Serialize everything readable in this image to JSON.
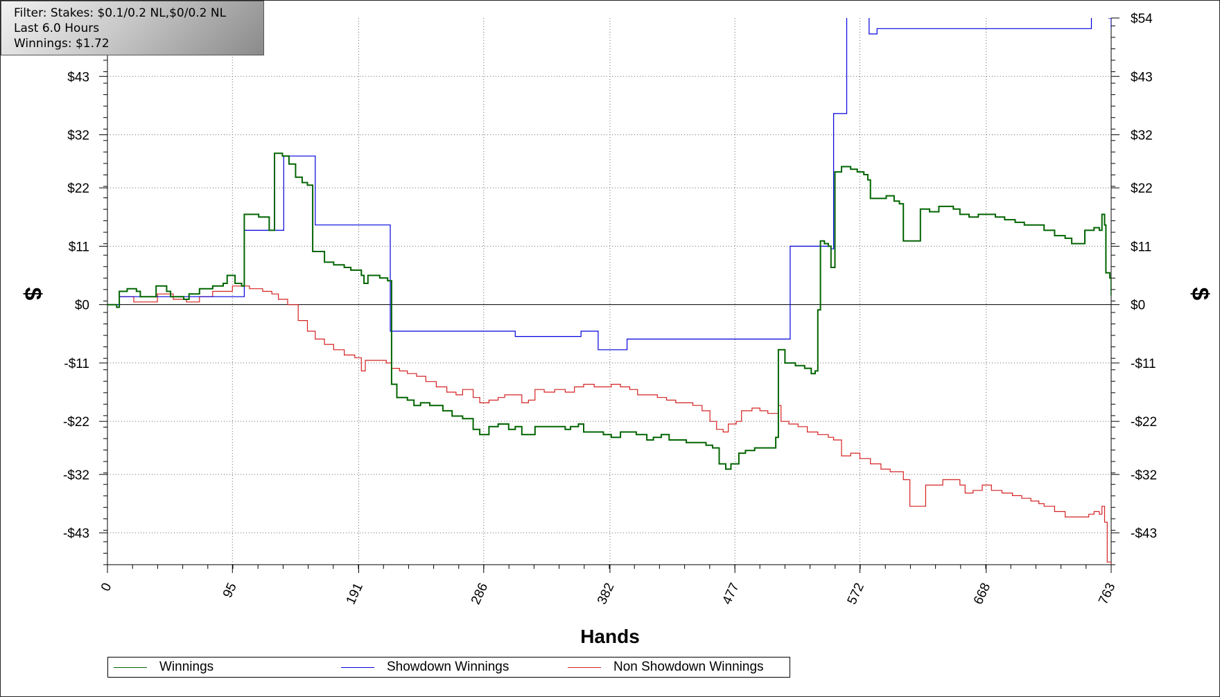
{
  "info": {
    "filter": "Filter: Stakes: $0.1/0.2 NL,$0/0.2 NL",
    "period": "Last 6.0 Hours",
    "winnings": "Winnings: $1.72"
  },
  "colors": {
    "winnings": "#006400",
    "showdown": "#0000dd",
    "non_showdown": "#d42020",
    "zero_line": "#000000",
    "grid": "#666666"
  },
  "legend": [
    {
      "label": "Winnings",
      "color": "#006400"
    },
    {
      "label": "Showdown Winnings",
      "color": "#0000dd"
    },
    {
      "label": "Non Showdown Winnings",
      "color": "#d42020"
    }
  ],
  "chart_data": {
    "type": "line",
    "title": "",
    "xlabel": "Hands",
    "ylabel": "$",
    "xlim": [
      0,
      763
    ],
    "ylim": [
      -49,
      54
    ],
    "x_ticks": [
      0,
      95,
      191,
      286,
      382,
      477,
      572,
      668,
      763
    ],
    "y_ticks": [
      {
        "value": 54,
        "label": "$54"
      },
      {
        "value": 43,
        "label": "$43"
      },
      {
        "value": 32,
        "label": "$32"
      },
      {
        "value": 22,
        "label": "$22"
      },
      {
        "value": 11,
        "label": "$11"
      },
      {
        "value": 0,
        "label": "$0"
      },
      {
        "value": -11,
        "label": "-$11"
      },
      {
        "value": -22,
        "label": "-$22"
      },
      {
        "value": -32,
        "label": "-$32"
      },
      {
        "value": -43,
        "label": "-$43"
      }
    ],
    "grid": true,
    "legend_position": "bottom",
    "series": [
      {
        "name": "Winnings",
        "points": [
          [
            0,
            0
          ],
          [
            7,
            -0.5
          ],
          [
            9,
            2.5
          ],
          [
            15,
            3
          ],
          [
            22,
            2.5
          ],
          [
            25,
            1.5
          ],
          [
            35,
            1.5
          ],
          [
            37,
            3.5
          ],
          [
            45,
            2.5
          ],
          [
            48,
            1.5
          ],
          [
            58,
            1
          ],
          [
            62,
            2
          ],
          [
            70,
            3
          ],
          [
            80,
            3.5
          ],
          [
            88,
            4
          ],
          [
            91,
            5.5
          ],
          [
            97,
            4
          ],
          [
            102,
            3.5
          ],
          [
            104,
            17
          ],
          [
            115,
            16.5
          ],
          [
            120,
            16.5
          ],
          [
            123,
            14
          ],
          [
            127,
            28.5
          ],
          [
            133,
            28
          ],
          [
            138,
            26.5
          ],
          [
            143,
            24
          ],
          [
            148,
            23
          ],
          [
            152,
            22.5
          ],
          [
            156,
            10
          ],
          [
            165,
            8
          ],
          [
            172,
            7.5
          ],
          [
            180,
            7
          ],
          [
            185,
            6.5
          ],
          [
            193,
            5.5
          ],
          [
            195,
            4
          ],
          [
            198,
            5.5
          ],
          [
            207,
            5
          ],
          [
            213,
            4.5
          ],
          [
            216,
            -15
          ],
          [
            220,
            -17.5
          ],
          [
            228,
            -18
          ],
          [
            233,
            -19
          ],
          [
            238,
            -18.5
          ],
          [
            245,
            -19
          ],
          [
            255,
            -20
          ],
          [
            262,
            -21
          ],
          [
            270,
            -21.5
          ],
          [
            278,
            -23.5
          ],
          [
            283,
            -24.5
          ],
          [
            290,
            -23
          ],
          [
            297,
            -22.5
          ],
          [
            305,
            -23.5
          ],
          [
            310,
            -23
          ],
          [
            315,
            -24.5
          ],
          [
            322,
            -24.5
          ],
          [
            325,
            -23
          ],
          [
            332,
            -23
          ],
          [
            340,
            -23
          ],
          [
            348,
            -23.5
          ],
          [
            352,
            -23
          ],
          [
            358,
            -22.5
          ],
          [
            362,
            -24
          ],
          [
            370,
            -24
          ],
          [
            377,
            -24.5
          ],
          [
            383,
            -25
          ],
          [
            390,
            -24
          ],
          [
            397,
            -24
          ],
          [
            402,
            -24.5
          ],
          [
            410,
            -25.5
          ],
          [
            415,
            -25
          ],
          [
            421,
            -24.5
          ],
          [
            427,
            -25.5
          ],
          [
            433,
            -25.5
          ],
          [
            440,
            -26
          ],
          [
            448,
            -26
          ],
          [
            455,
            -26.5
          ],
          [
            460,
            -27
          ],
          [
            465,
            -30
          ],
          [
            470,
            -31
          ],
          [
            474,
            -30
          ],
          [
            480,
            -28
          ],
          [
            485,
            -27.5
          ],
          [
            492,
            -27
          ],
          [
            500,
            -27
          ],
          [
            506,
            -27
          ],
          [
            508,
            -25
          ],
          [
            510,
            -8.5
          ],
          [
            515,
            -11
          ],
          [
            523,
            -11.5
          ],
          [
            530,
            -12
          ],
          [
            535,
            -13
          ],
          [
            538,
            -12.5
          ],
          [
            540,
            -1
          ],
          [
            542,
            12
          ],
          [
            545,
            11.5
          ],
          [
            548,
            11
          ],
          [
            550,
            7
          ],
          [
            553,
            25
          ],
          [
            558,
            26
          ],
          [
            565,
            25.5
          ],
          [
            570,
            25
          ],
          [
            575,
            24.5
          ],
          [
            578,
            23.5
          ],
          [
            580,
            20
          ],
          [
            585,
            20
          ],
          [
            592,
            20.5
          ],
          [
            598,
            19.5
          ],
          [
            602,
            19
          ],
          [
            605,
            12
          ],
          [
            612,
            12
          ],
          [
            618,
            18
          ],
          [
            625,
            17.5
          ],
          [
            632,
            18.5
          ],
          [
            638,
            18.5
          ],
          [
            643,
            18
          ],
          [
            648,
            17
          ],
          [
            655,
            16.5
          ],
          [
            662,
            17
          ],
          [
            668,
            17
          ],
          [
            675,
            16.5
          ],
          [
            682,
            16
          ],
          [
            690,
            15.5
          ],
          [
            697,
            15
          ],
          [
            705,
            15
          ],
          [
            712,
            14
          ],
          [
            720,
            13
          ],
          [
            728,
            12.5
          ],
          [
            733,
            11.5
          ],
          [
            738,
            11.5
          ],
          [
            743,
            14
          ],
          [
            750,
            14.5
          ],
          [
            754,
            14
          ],
          [
            756,
            17
          ],
          [
            758,
            15
          ],
          [
            759,
            6
          ],
          [
            762,
            5
          ],
          [
            763,
            1.72
          ]
        ]
      },
      {
        "name": "Showdown Winnings",
        "points": [
          [
            0,
            0
          ],
          [
            8,
            0
          ],
          [
            9,
            1.5
          ],
          [
            96,
            1.5
          ],
          [
            102,
            1.5
          ],
          [
            104,
            14
          ],
          [
            133,
            14
          ],
          [
            134,
            28
          ],
          [
            157,
            28
          ],
          [
            158,
            15
          ],
          [
            213,
            15
          ],
          [
            215,
            -5
          ],
          [
            307,
            -5
          ],
          [
            310,
            -6
          ],
          [
            360,
            -5
          ],
          [
            370,
            -5
          ],
          [
            373,
            -8.5
          ],
          [
            392,
            -8.5
          ],
          [
            395,
            -6.5
          ],
          [
            450,
            -6.5
          ],
          [
            455,
            -6.5
          ],
          [
            506,
            -6.5
          ],
          [
            518,
            -6.5
          ],
          [
            519,
            11
          ],
          [
            530,
            11
          ],
          [
            550,
            10.5
          ],
          [
            552,
            36
          ],
          [
            560,
            36
          ],
          [
            562,
            55
          ],
          [
            576,
            55
          ],
          [
            579,
            51
          ],
          [
            585,
            52
          ],
          [
            598,
            52
          ],
          [
            600,
            52
          ],
          [
            705,
            52
          ],
          [
            745,
            52
          ],
          [
            748,
            56
          ],
          [
            760,
            56
          ],
          [
            761,
            54
          ],
          [
            763,
            52
          ]
        ]
      },
      {
        "name": "Non Showdown Winnings",
        "points": [
          [
            0,
            0
          ],
          [
            7,
            -0.5
          ],
          [
            9,
            1.5
          ],
          [
            15,
            1.5
          ],
          [
            20,
            0.5
          ],
          [
            35,
            0.5
          ],
          [
            38,
            2
          ],
          [
            45,
            2
          ],
          [
            50,
            1
          ],
          [
            60,
            0.5
          ],
          [
            70,
            1.5
          ],
          [
            80,
            2.5
          ],
          [
            95,
            3.5
          ],
          [
            100,
            3.5
          ],
          [
            108,
            3
          ],
          [
            118,
            2.5
          ],
          [
            125,
            2
          ],
          [
            130,
            1
          ],
          [
            137,
            0
          ],
          [
            145,
            -3
          ],
          [
            152,
            -5
          ],
          [
            158,
            -6.5
          ],
          [
            165,
            -7.5
          ],
          [
            172,
            -8.5
          ],
          [
            180,
            -9.5
          ],
          [
            188,
            -10
          ],
          [
            193,
            -12.5
          ],
          [
            196,
            -10.5
          ],
          [
            205,
            -10.5
          ],
          [
            212,
            -11
          ],
          [
            216,
            -12
          ],
          [
            222,
            -12.5
          ],
          [
            228,
            -13
          ],
          [
            235,
            -13.5
          ],
          [
            242,
            -14.5
          ],
          [
            250,
            -15.5
          ],
          [
            258,
            -16.5
          ],
          [
            265,
            -17
          ],
          [
            270,
            -16
          ],
          [
            278,
            -17.5
          ],
          [
            283,
            -18.5
          ],
          [
            290,
            -18
          ],
          [
            297,
            -17.5
          ],
          [
            302,
            -17
          ],
          [
            310,
            -17
          ],
          [
            315,
            -18.5
          ],
          [
            320,
            -18
          ],
          [
            325,
            -16
          ],
          [
            332,
            -16.5
          ],
          [
            340,
            -16
          ],
          [
            348,
            -16.5
          ],
          [
            355,
            -15.5
          ],
          [
            362,
            -15
          ],
          [
            370,
            -15.5
          ],
          [
            378,
            -15.5
          ],
          [
            383,
            -15
          ],
          [
            390,
            -15.5
          ],
          [
            397,
            -16
          ],
          [
            403,
            -17
          ],
          [
            410,
            -17
          ],
          [
            418,
            -17.5
          ],
          [
            425,
            -18
          ],
          [
            432,
            -18.5
          ],
          [
            440,
            -18.5
          ],
          [
            445,
            -19
          ],
          [
            452,
            -20
          ],
          [
            458,
            -22
          ],
          [
            463,
            -23.5
          ],
          [
            468,
            -24
          ],
          [
            472,
            -22.5
          ],
          [
            478,
            -22
          ],
          [
            482,
            -20
          ],
          [
            490,
            -19.5
          ],
          [
            496,
            -20
          ],
          [
            502,
            -20.5
          ],
          [
            508,
            -20.5
          ],
          [
            510,
            -19
          ],
          [
            512,
            -22
          ],
          [
            518,
            -22.5
          ],
          [
            525,
            -23
          ],
          [
            532,
            -24
          ],
          [
            540,
            -24.5
          ],
          [
            548,
            -25
          ],
          [
            552,
            -25.5
          ],
          [
            558,
            -28.5
          ],
          [
            565,
            -28
          ],
          [
            572,
            -29
          ],
          [
            580,
            -30
          ],
          [
            588,
            -31
          ],
          [
            595,
            -31.5
          ],
          [
            600,
            -31.5
          ],
          [
            605,
            -33
          ],
          [
            610,
            -38
          ],
          [
            618,
            -38
          ],
          [
            622,
            -34
          ],
          [
            628,
            -34
          ],
          [
            635,
            -33
          ],
          [
            643,
            -33
          ],
          [
            648,
            -34
          ],
          [
            652,
            -35.5
          ],
          [
            658,
            -35
          ],
          [
            665,
            -34
          ],
          [
            672,
            -35
          ],
          [
            680,
            -35.5
          ],
          [
            688,
            -36
          ],
          [
            695,
            -36.5
          ],
          [
            702,
            -37
          ],
          [
            708,
            -37.5
          ],
          [
            712,
            -38
          ],
          [
            720,
            -39
          ],
          [
            728,
            -40
          ],
          [
            735,
            -40
          ],
          [
            742,
            -40
          ],
          [
            746,
            -39.5
          ],
          [
            750,
            -39
          ],
          [
            754,
            -39.5
          ],
          [
            756,
            -38
          ],
          [
            758,
            -41
          ],
          [
            760,
            -48.5
          ],
          [
            763,
            -49
          ]
        ]
      }
    ]
  }
}
